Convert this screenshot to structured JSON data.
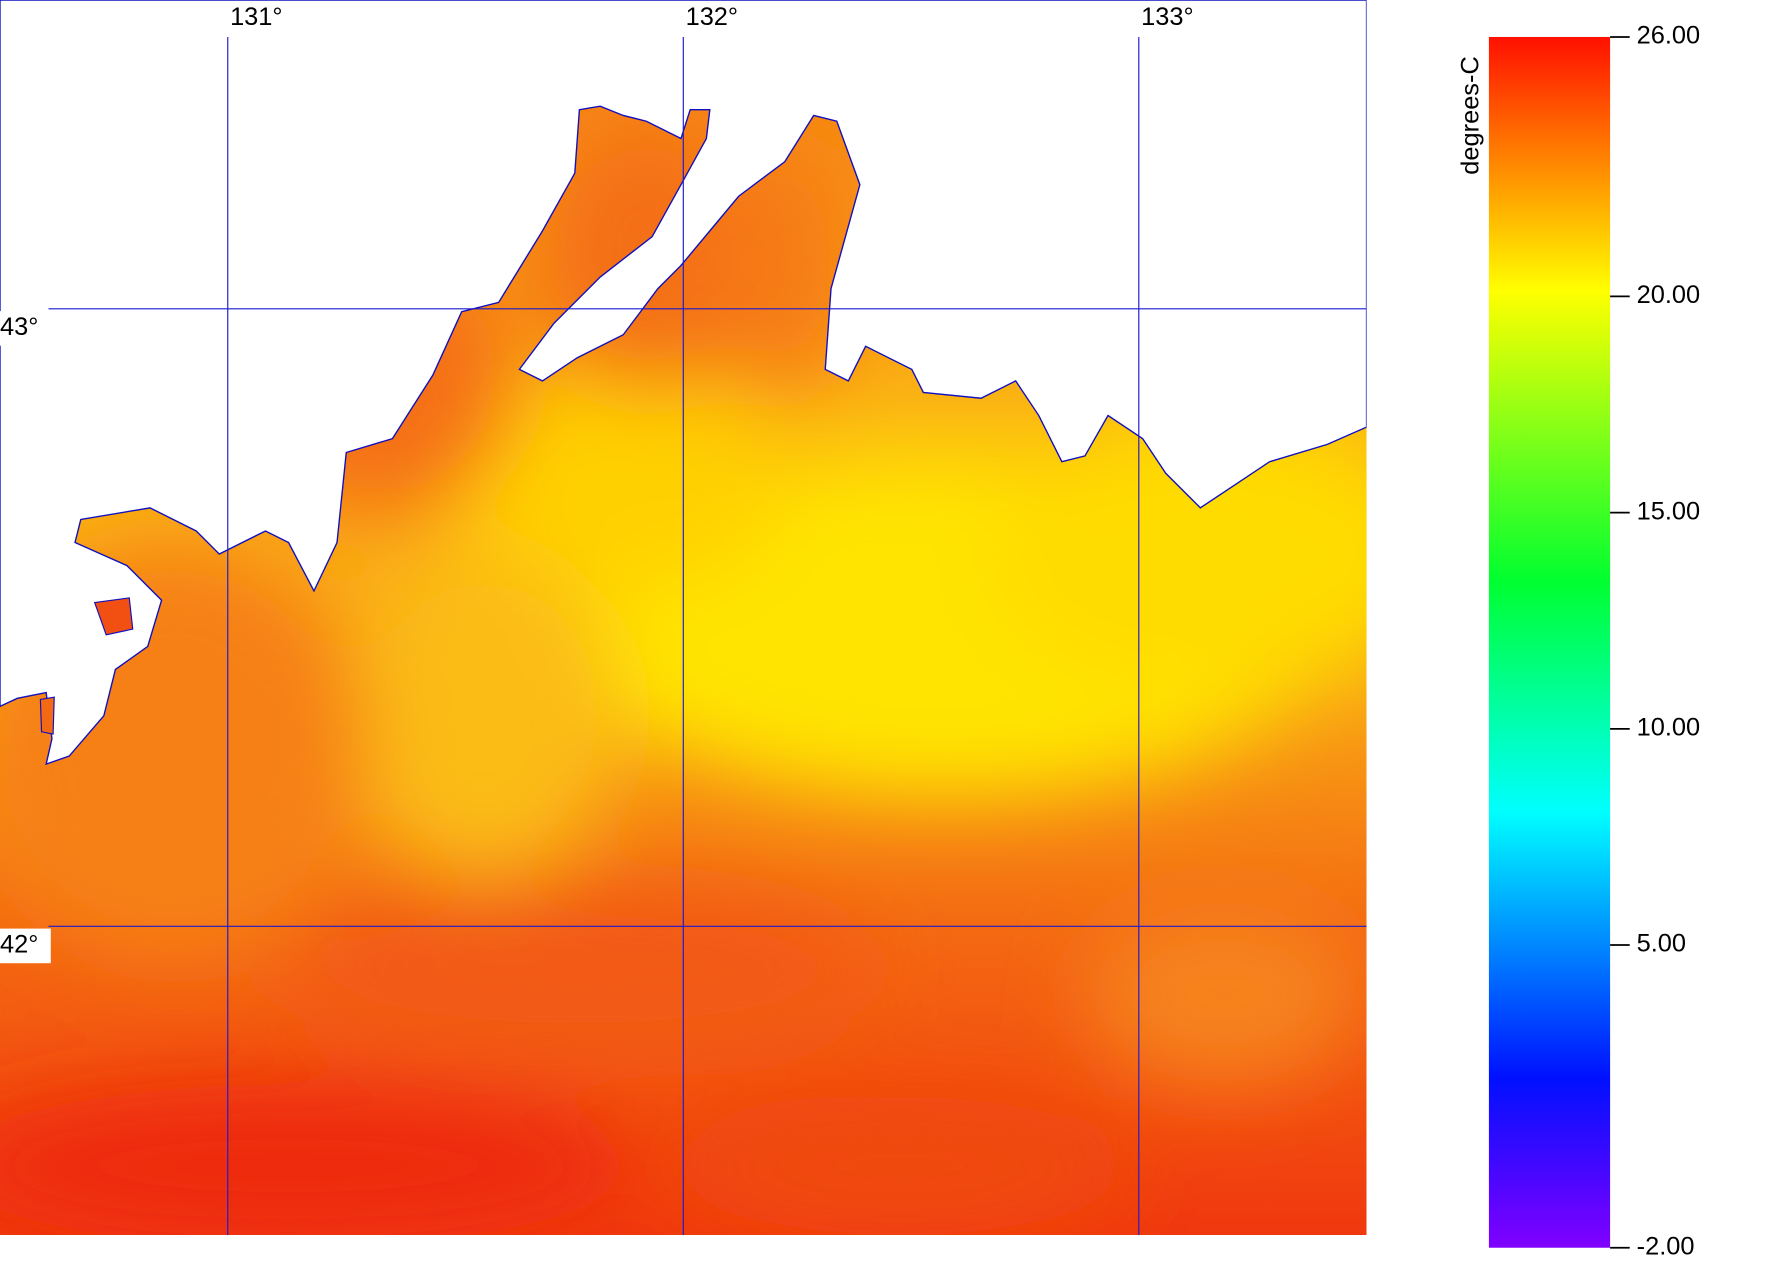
{
  "map": {
    "lonlim": [
      130.5,
      133.5
    ],
    "latlim": [
      41.5,
      43.5
    ],
    "lonticks": [
      {
        "value": 131,
        "label": "131°"
      },
      {
        "value": 132,
        "label": "132°"
      },
      {
        "value": 133,
        "label": "133°"
      }
    ],
    "latticks": [
      {
        "value": 43,
        "label": "43°"
      },
      {
        "value": 42,
        "label": "42°"
      }
    ],
    "colorbar": {
      "title": "degrees-C",
      "range": [
        -2,
        26
      ],
      "ticks": [
        {
          "value": 26,
          "label": "26.00"
        },
        {
          "value": 20,
          "label": "20.00"
        },
        {
          "value": 15,
          "label": "15.00"
        },
        {
          "value": 10,
          "label": "10.00"
        },
        {
          "value": 5,
          "label": "5.00"
        },
        {
          "value": -2,
          "label": "-2.00"
        }
      ]
    }
  }
}
